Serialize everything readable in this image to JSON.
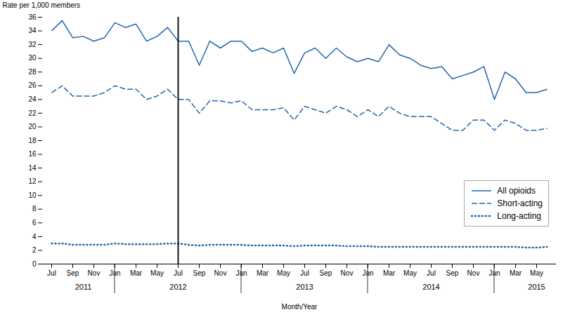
{
  "chart_data": {
    "type": "line",
    "xlabel": "Month/Year",
    "ylabel": "Rate per 1,000 members",
    "categories": [
      "Jul",
      null,
      "Sep",
      null,
      "Nov",
      null,
      "Jan",
      null,
      "Mar",
      null,
      "May",
      null,
      "Jul",
      null,
      "Sep",
      null,
      "Nov",
      null,
      "Jan",
      null,
      "Mar",
      null,
      "May",
      null,
      "Jul",
      null,
      "Sep",
      null,
      "Nov",
      null,
      "Jan",
      null,
      "Mar",
      null,
      "May",
      null,
      "Jul",
      null,
      "Sep",
      null,
      "Nov",
      null,
      "Jan",
      null,
      "Mar",
      null,
      "May",
      null
    ],
    "series": [
      {
        "name": "All opioids",
        "color": "#2166AC",
        "line_style": "solid",
        "values": [
          34.0,
          35.5,
          33.0,
          33.2,
          32.5,
          33.0,
          35.2,
          34.5,
          35.0,
          32.5,
          33.2,
          34.5,
          32.5,
          32.5,
          29.0,
          32.5,
          31.5,
          32.5,
          32.5,
          31.0,
          31.5,
          30.8,
          31.5,
          27.8,
          30.8,
          31.5,
          30.0,
          31.5,
          30.2,
          29.5,
          30.0,
          29.5,
          32.0,
          30.5,
          30.0,
          29.0,
          28.5,
          28.8,
          27.0,
          27.5,
          28.0,
          28.8,
          24.0,
          28.0,
          27.0,
          25.0,
          25.0,
          25.5
        ]
      },
      {
        "name": "Short-acting",
        "color": "#2166AC",
        "line_style": "dashed",
        "values": [
          25.0,
          26.0,
          24.5,
          24.5,
          24.5,
          25.0,
          26.0,
          25.5,
          25.5,
          24.0,
          24.5,
          25.5,
          24.0,
          24.0,
          22.0,
          23.8,
          23.8,
          23.5,
          23.8,
          22.5,
          22.5,
          22.5,
          22.8,
          21.0,
          23.0,
          22.5,
          22.0,
          23.0,
          22.5,
          21.5,
          22.5,
          21.5,
          23.0,
          22.0,
          21.5,
          21.5,
          21.5,
          20.5,
          19.5,
          19.5,
          21.0,
          21.0,
          19.5,
          21.0,
          20.5,
          19.5,
          19.5,
          19.8
        ]
      },
      {
        "name": "Long-acting",
        "color": "#2166AC",
        "line_style": "dotted",
        "values": [
          3.0,
          3.0,
          2.8,
          2.8,
          2.8,
          2.8,
          3.0,
          2.9,
          2.9,
          2.9,
          2.9,
          3.0,
          3.0,
          2.8,
          2.7,
          2.8,
          2.8,
          2.8,
          2.8,
          2.7,
          2.7,
          2.7,
          2.7,
          2.6,
          2.7,
          2.7,
          2.7,
          2.7,
          2.6,
          2.6,
          2.6,
          2.5,
          2.5,
          2.5,
          2.5,
          2.5,
          2.5,
          2.5,
          2.5,
          2.5,
          2.5,
          2.5,
          2.5,
          2.5,
          2.5,
          2.4,
          2.4,
          2.5
        ]
      }
    ],
    "ylim": [
      0,
      36
    ],
    "yticks": [
      0,
      2,
      4,
      6,
      8,
      10,
      12,
      14,
      16,
      18,
      20,
      22,
      24,
      26,
      28,
      30,
      32,
      34,
      36
    ],
    "grid": false,
    "legend": "lower right",
    "vlines": [
      12
    ],
    "year_separators": [
      6,
      18,
      30,
      42
    ],
    "annotations": [
      {
        "text": "2011",
        "x": 3
      },
      {
        "text": "2012",
        "x": 12
      },
      {
        "text": "2013",
        "x": 24
      },
      {
        "text": "2014",
        "x": 36
      },
      {
        "text": "2015",
        "x": 46
      }
    ]
  }
}
